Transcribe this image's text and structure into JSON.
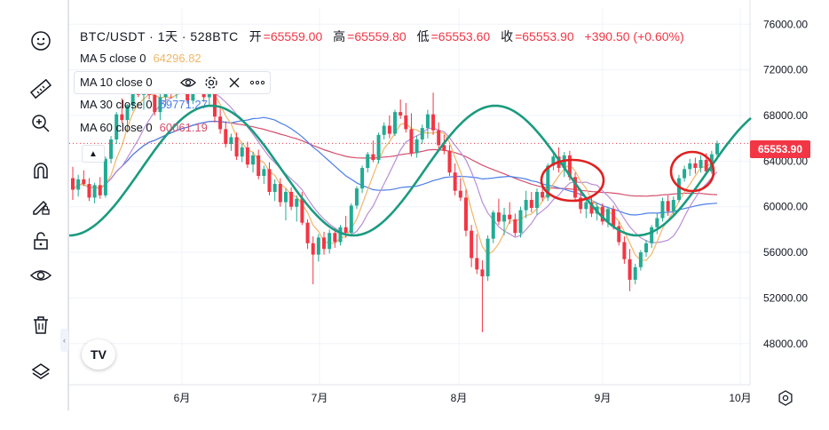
{
  "legend": {
    "symbol": "BTC/USDT · 1天 · 528BTC",
    "open_label": "开",
    "open_value": "=65559.00",
    "high_label": "高",
    "high_value": "=65559.80",
    "low_label": "低",
    "low_value": "=65553.60",
    "close_label": "收",
    "close_value": "=65553.90",
    "change": "+390.50 (+0.60%)",
    "ma5": {
      "label": "MA 5 close 0",
      "value": "64296.82",
      "color": "#f0b768"
    },
    "ma10": {
      "label": "MA 10 close 0",
      "color": "#e8a36b"
    },
    "ma30": {
      "label": "MA 30 close 0",
      "value": "59771.27",
      "color": "#4a7ee8"
    },
    "ma60": {
      "label": "MA 60 close 0",
      "value": "60061.19",
      "color": "#d4506d"
    }
  },
  "current_price": "65553.90",
  "toolbar": {
    "tools": [
      "emoji-icon",
      "ruler-icon",
      "zoom-in-icon",
      "magnet-icon",
      "pencil-lock-icon",
      "unlock-icon",
      "eye-icon",
      "trash-icon",
      "layers-icon"
    ]
  },
  "logo_text": "TV",
  "chart_data": {
    "type": "candlestick",
    "x_ticks": [
      "6月",
      "7月",
      "8月",
      "9月",
      "10月"
    ],
    "y_ticks": [
      "48000.00",
      "52000.00",
      "56000.00",
      "60000.00",
      "64000.00",
      "68000.00",
      "72000.00",
      "76000.00"
    ],
    "ylim": [
      44400,
      77500
    ],
    "colors": {
      "up": "#22ab94",
      "down": "#f23645",
      "wave": "#1a9b7f",
      "circle": "#e02020"
    },
    "candles": [
      [
        62500,
        63500,
        60600,
        61500
      ],
      [
        61500,
        62800,
        60900,
        62400
      ],
      [
        62400,
        63200,
        61800,
        62000
      ],
      [
        62000,
        62500,
        60500,
        60800
      ],
      [
        60800,
        62100,
        60300,
        61900
      ],
      [
        61900,
        62600,
        60700,
        61000
      ],
      [
        61000,
        64400,
        60800,
        64200
      ],
      [
        64200,
        66200,
        63800,
        65900
      ],
      [
        65900,
        68300,
        65500,
        68100
      ],
      [
        68100,
        69500,
        67300,
        67600
      ],
      [
        67600,
        69000,
        66500,
        68900
      ],
      [
        68900,
        71000,
        68400,
        70600
      ],
      [
        70600,
        71700,
        69600,
        69800
      ],
      [
        69800,
        71000,
        68500,
        70300
      ],
      [
        70300,
        71400,
        69400,
        69800
      ],
      [
        69800,
        70400,
        68000,
        68300
      ],
      [
        68300,
        70000,
        67600,
        69600
      ],
      [
        69600,
        70800,
        68800,
        70200
      ],
      [
        70200,
        71500,
        69500,
        70000
      ],
      [
        70000,
        71200,
        69500,
        70800
      ],
      [
        70800,
        71500,
        70000,
        70300
      ],
      [
        70300,
        71000,
        69000,
        69300
      ],
      [
        69300,
        71300,
        69000,
        70900
      ],
      [
        70900,
        71400,
        70000,
        70500
      ],
      [
        70500,
        71100,
        69200,
        69600
      ],
      [
        69600,
        70400,
        68900,
        70000
      ],
      [
        70000,
        70500,
        67400,
        67900
      ],
      [
        67900,
        68600,
        66400,
        66800
      ],
      [
        66800,
        67500,
        65200,
        65500
      ],
      [
        65500,
        66400,
        64900,
        66100
      ],
      [
        66100,
        66500,
        64100,
        64400
      ],
      [
        64400,
        65600,
        63900,
        65200
      ],
      [
        65200,
        65700,
        63400,
        63700
      ],
      [
        63700,
        64800,
        63000,
        64500
      ],
      [
        64500,
        65000,
        62400,
        62700
      ],
      [
        62700,
        63600,
        62000,
        63300
      ],
      [
        63300,
        63900,
        61000,
        61300
      ],
      [
        61300,
        62400,
        60500,
        62000
      ],
      [
        62000,
        62500,
        60000,
        60400
      ],
      [
        60400,
        61600,
        58800,
        61300
      ],
      [
        61300,
        61700,
        59700,
        60000
      ],
      [
        60000,
        61000,
        58700,
        60700
      ],
      [
        60700,
        61300,
        58400,
        58600
      ],
      [
        58600,
        58900,
        56300,
        56800
      ],
      [
        56800,
        57400,
        53200,
        55800
      ],
      [
        55800,
        57600,
        55200,
        57300
      ],
      [
        57300,
        57800,
        55800,
        56300
      ],
      [
        56300,
        58000,
        55900,
        57700
      ],
      [
        57700,
        58100,
        56400,
        56900
      ],
      [
        56900,
        58400,
        56600,
        58200
      ],
      [
        58200,
        59200,
        57300,
        57700
      ],
      [
        57700,
        60300,
        57500,
        60100
      ],
      [
        60100,
        61800,
        59800,
        61600
      ],
      [
        61600,
        63600,
        61200,
        63400
      ],
      [
        63400,
        64800,
        63000,
        64600
      ],
      [
        64600,
        65800,
        63900,
        64100
      ],
      [
        64100,
        66500,
        63800,
        66300
      ],
      [
        66300,
        67400,
        65900,
        67100
      ],
      [
        67100,
        68000,
        66000,
        66400
      ],
      [
        66400,
        68500,
        66200,
        68300
      ],
      [
        68300,
        69400,
        67700,
        68000
      ],
      [
        68000,
        69100,
        66500,
        66800
      ],
      [
        66800,
        68200,
        64400,
        64700
      ],
      [
        64700,
        66200,
        64300,
        65900
      ],
      [
        65900,
        67200,
        65500,
        66900
      ],
      [
        66900,
        68500,
        66000,
        68100
      ],
      [
        68100,
        70000,
        66300,
        66700
      ],
      [
        66700,
        67400,
        65100,
        65400
      ],
      [
        65400,
        66300,
        64600,
        64900
      ],
      [
        64900,
        65400,
        62700,
        63000
      ],
      [
        63000,
        63800,
        61000,
        61400
      ],
      [
        61400,
        62500,
        60500,
        60800
      ],
      [
        60800,
        61500,
        57400,
        57900
      ],
      [
        57900,
        58400,
        54700,
        55500
      ],
      [
        55500,
        57600,
        54100,
        54500
      ],
      [
        54500,
        55300,
        49000,
        53900
      ],
      [
        53900,
        57500,
        53500,
        57200
      ],
      [
        57200,
        59700,
        56800,
        59500
      ],
      [
        59500,
        60700,
        58400,
        58700
      ],
      [
        58700,
        59900,
        57500,
        59300
      ],
      [
        59300,
        60400,
        58500,
        58900
      ],
      [
        58900,
        59400,
        57400,
        57700
      ],
      [
        57700,
        60000,
        57300,
        59700
      ],
      [
        59700,
        61400,
        59000,
        60600
      ],
      [
        60600,
        61300,
        59500,
        59900
      ],
      [
        59900,
        61600,
        59300,
        61300
      ],
      [
        61300,
        62000,
        60500,
        60800
      ],
      [
        60800,
        63800,
        60500,
        63600
      ],
      [
        63600,
        64900,
        63200,
        64400
      ],
      [
        64400,
        65200,
        63000,
        63400
      ],
      [
        63400,
        64800,
        62600,
        64500
      ],
      [
        64500,
        64900,
        62300,
        62600
      ],
      [
        62600,
        63000,
        60500,
        60800
      ],
      [
        60800,
        61600,
        59400,
        59800
      ],
      [
        59800,
        60800,
        59000,
        60400
      ],
      [
        60400,
        61000,
        59100,
        59400
      ],
      [
        59400,
        60300,
        58800,
        60000
      ],
      [
        60000,
        60300,
        58400,
        58700
      ],
      [
        58700,
        60000,
        58200,
        59800
      ],
      [
        59800,
        60100,
        58000,
        58300
      ],
      [
        58300,
        58700,
        56600,
        56900
      ],
      [
        56900,
        57400,
        55000,
        55400
      ],
      [
        55400,
        56300,
        52600,
        53600
      ],
      [
        53600,
        55000,
        53200,
        54700
      ],
      [
        54700,
        56200,
        54400,
        56000
      ],
      [
        56000,
        57100,
        55600,
        56800
      ],
      [
        56800,
        58400,
        56400,
        58200
      ],
      [
        58200,
        59400,
        57600,
        59000
      ],
      [
        59000,
        60800,
        58700,
        60500
      ],
      [
        60500,
        61000,
        59200,
        59600
      ],
      [
        59600,
        60900,
        59200,
        60600
      ],
      [
        60600,
        62800,
        60400,
        62500
      ],
      [
        62500,
        63600,
        62200,
        63300
      ],
      [
        63300,
        64200,
        62700,
        63800
      ],
      [
        63800,
        64300,
        62900,
        63400
      ],
      [
        63400,
        64500,
        63000,
        64100
      ],
      [
        64100,
        64700,
        62800,
        63100
      ],
      [
        63100,
        64900,
        62900,
        64600
      ],
      [
        64600,
        65800,
        64200,
        65554
      ]
    ],
    "ma_overlays": [
      "MA 5",
      "MA 10",
      "MA 30",
      "MA 60"
    ],
    "annotations": [
      "sine-wave",
      "circle-1",
      "circle-2"
    ]
  }
}
